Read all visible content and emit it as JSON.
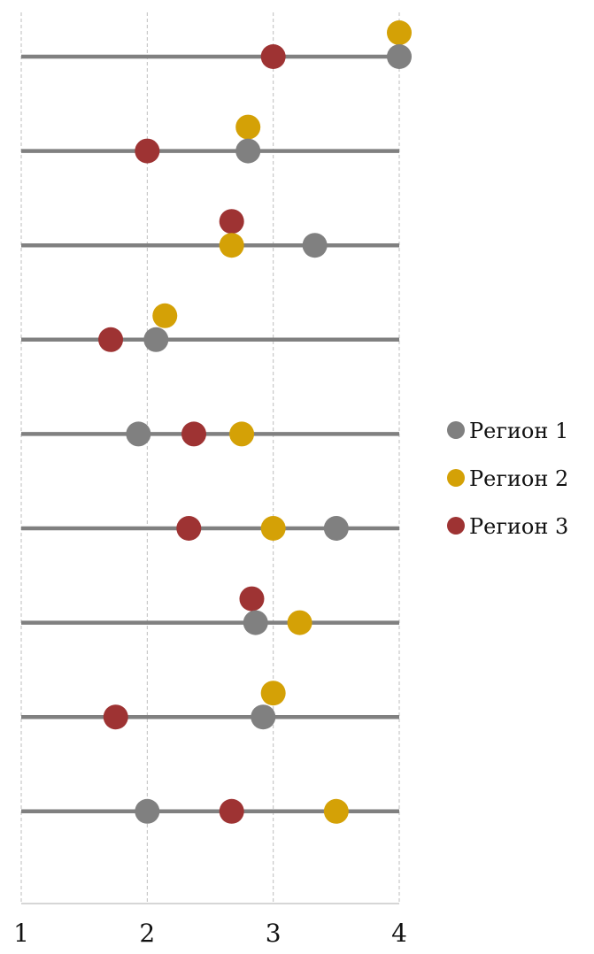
{
  "chart_data": {
    "type": "scatter",
    "subtype": "dot-plot",
    "title": "",
    "xlabel": "",
    "ylabel": "",
    "xlim": [
      1,
      4
    ],
    "x_ticks": [
      "1",
      "2",
      "3",
      "4"
    ],
    "grid": {
      "vertical": true,
      "style": "dashed"
    },
    "legend": {
      "position": "right"
    },
    "rows": 9,
    "row_line_color": "#808080",
    "series": [
      {
        "name": "Регион 1",
        "color": "#808080",
        "values": [
          4.0,
          2.8,
          3.33,
          2.07,
          1.93,
          3.5,
          2.86,
          2.92,
          2.0
        ]
      },
      {
        "name": "Регион 2",
        "color": "#D4A106",
        "values": [
          4.0,
          2.8,
          2.67,
          2.14,
          2.75,
          3.0,
          3.21,
          3.0,
          3.5
        ]
      },
      {
        "name": "Регион 3",
        "color": "#9E3333",
        "values": [
          3.0,
          2.0,
          2.67,
          1.71,
          2.37,
          2.33,
          2.83,
          1.75,
          2.67
        ]
      }
    ]
  }
}
